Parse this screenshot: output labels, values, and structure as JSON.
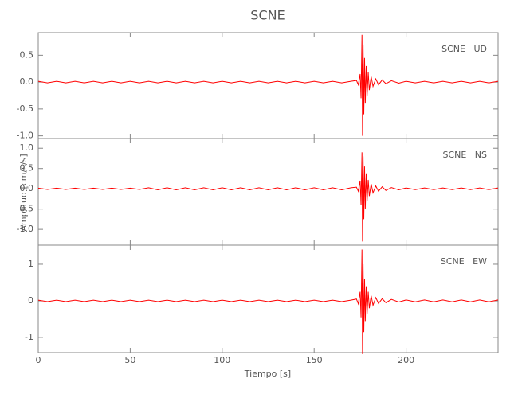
{
  "title": "SCNE",
  "ylabel": "Amplitud [cm/s/s]",
  "xlabel": "Tiempo [s]",
  "chart_data": [
    {
      "type": "line",
      "label": "SCNE   UD",
      "color": "#ff0000",
      "xlim": [
        0,
        250
      ],
      "xticks": [
        0,
        50,
        100,
        150,
        200
      ],
      "ylim": [
        -1.05,
        0.92
      ],
      "yticks": [
        0.5,
        {
          "value": 0,
          "label": "0.0"
        },
        -0.5,
        {
          "value": -1,
          "label": "-1.0"
        }
      ],
      "x": [
        0,
        5,
        10,
        15,
        20,
        25,
        30,
        35,
        40,
        45,
        50,
        55,
        60,
        65,
        70,
        75,
        80,
        85,
        90,
        95,
        100,
        105,
        110,
        115,
        120,
        125,
        130,
        135,
        140,
        145,
        150,
        155,
        160,
        165,
        170,
        173,
        174,
        175,
        175.5,
        176,
        176.3,
        176.6,
        177,
        177.4,
        177.8,
        178.3,
        178.8,
        179.4,
        180,
        181,
        182,
        183.5,
        185,
        187,
        189,
        192,
        196,
        200,
        205,
        210,
        215,
        220,
        225,
        230,
        235,
        240,
        245,
        250
      ],
      "values": [
        0.015,
        -0.015,
        0.015,
        -0.015,
        0.015,
        -0.015,
        0.015,
        -0.015,
        0.015,
        -0.015,
        0.015,
        -0.015,
        0.015,
        -0.015,
        0.015,
        -0.015,
        0.015,
        -0.015,
        0.015,
        -0.015,
        0.015,
        -0.015,
        0.015,
        -0.015,
        0.015,
        -0.015,
        0.015,
        -0.015,
        0.015,
        -0.015,
        0.015,
        -0.015,
        0.015,
        -0.015,
        0.015,
        0.03,
        -0.05,
        0.15,
        -0.3,
        0.88,
        -1.0,
        0.7,
        -0.6,
        0.45,
        -0.4,
        0.3,
        -0.25,
        0.18,
        -0.15,
        0.1,
        -0.08,
        0.06,
        -0.05,
        0.04,
        -0.03,
        0.025,
        -0.02,
        0.015,
        -0.015,
        0.015,
        -0.015,
        0.015,
        -0.015,
        0.015,
        -0.015,
        0.015,
        -0.015,
        0.015
      ]
    },
    {
      "type": "line",
      "label": "SCNE   NS",
      "color": "#ff0000",
      "xlim": [
        0,
        250
      ],
      "xticks": [
        0,
        50,
        100,
        150,
        200
      ],
      "ylim": [
        -1.39,
        1.24
      ],
      "yticks": [
        {
          "value": 1,
          "label": "1.0"
        },
        0.5,
        {
          "value": 0,
          "label": "0.0"
        },
        -0.5,
        {
          "value": -1,
          "label": "-1.0"
        }
      ],
      "x": [
        0,
        5,
        10,
        15,
        20,
        25,
        30,
        35,
        40,
        45,
        50,
        55,
        60,
        65,
        70,
        75,
        80,
        85,
        90,
        95,
        100,
        105,
        110,
        115,
        120,
        125,
        130,
        135,
        140,
        145,
        150,
        155,
        160,
        165,
        170,
        173,
        174,
        175,
        175.5,
        176,
        176.3,
        176.6,
        177,
        177.4,
        177.8,
        178.3,
        178.8,
        179.4,
        180,
        181,
        182,
        183.5,
        185,
        187,
        189,
        192,
        196,
        200,
        205,
        210,
        215,
        220,
        225,
        230,
        235,
        240,
        245,
        250
      ],
      "values": [
        0.015,
        -0.015,
        0.015,
        -0.015,
        0.015,
        -0.015,
        0.015,
        -0.015,
        0.015,
        -0.015,
        0.015,
        -0.015,
        0.025,
        -0.025,
        0.025,
        -0.025,
        0.025,
        -0.025,
        0.025,
        -0.025,
        0.025,
        -0.025,
        0.025,
        -0.025,
        0.025,
        -0.025,
        0.025,
        -0.025,
        0.025,
        -0.025,
        0.025,
        -0.025,
        0.025,
        -0.025,
        0.025,
        0.04,
        -0.06,
        0.2,
        -0.4,
        0.9,
        -1.3,
        0.8,
        -0.75,
        0.55,
        -0.5,
        0.38,
        -0.3,
        0.22,
        -0.18,
        0.12,
        -0.1,
        0.07,
        -0.06,
        0.05,
        -0.04,
        0.03,
        -0.025,
        0.02,
        -0.02,
        0.02,
        -0.02,
        0.02,
        -0.02,
        0.02,
        -0.02,
        0.02,
        -0.02,
        0.02
      ]
    },
    {
      "type": "line",
      "label": "SCNE   EW",
      "color": "#ff0000",
      "xlim": [
        0,
        250
      ],
      "xticks": [
        0,
        50,
        100,
        150,
        200
      ],
      "ylim": [
        -1.41,
        1.52
      ],
      "yticks": [
        1,
        0,
        -1
      ],
      "x": [
        0,
        5,
        10,
        15,
        20,
        25,
        30,
        35,
        40,
        45,
        50,
        55,
        60,
        65,
        70,
        75,
        80,
        85,
        90,
        95,
        100,
        105,
        110,
        115,
        120,
        125,
        130,
        135,
        140,
        145,
        150,
        155,
        160,
        165,
        170,
        173,
        174,
        175,
        175.5,
        176,
        176.3,
        176.6,
        177,
        177.4,
        177.8,
        178.3,
        178.8,
        179.4,
        180,
        181,
        182,
        183.5,
        185,
        187,
        189,
        192,
        196,
        200,
        205,
        210,
        215,
        220,
        225,
        230,
        235,
        240,
        245,
        250
      ],
      "values": [
        0.02,
        -0.02,
        0.02,
        -0.02,
        0.02,
        -0.02,
        0.02,
        -0.02,
        0.02,
        -0.02,
        0.02,
        -0.02,
        0.02,
        -0.02,
        0.02,
        -0.02,
        0.02,
        -0.02,
        0.02,
        -0.02,
        0.02,
        -0.02,
        0.02,
        -0.02,
        0.02,
        -0.02,
        0.02,
        -0.02,
        0.02,
        -0.02,
        0.02,
        -0.02,
        0.02,
        -0.02,
        0.02,
        0.05,
        -0.08,
        0.25,
        -0.45,
        1.4,
        -1.45,
        1.0,
        -0.85,
        0.6,
        -0.55,
        0.4,
        -0.35,
        0.25,
        -0.2,
        0.14,
        -0.12,
        0.09,
        -0.07,
        0.06,
        -0.05,
        0.04,
        -0.03,
        0.025,
        -0.025,
        0.025,
        -0.025,
        0.025,
        -0.025,
        0.025,
        -0.025,
        0.025,
        -0.025,
        0.025
      ]
    }
  ]
}
